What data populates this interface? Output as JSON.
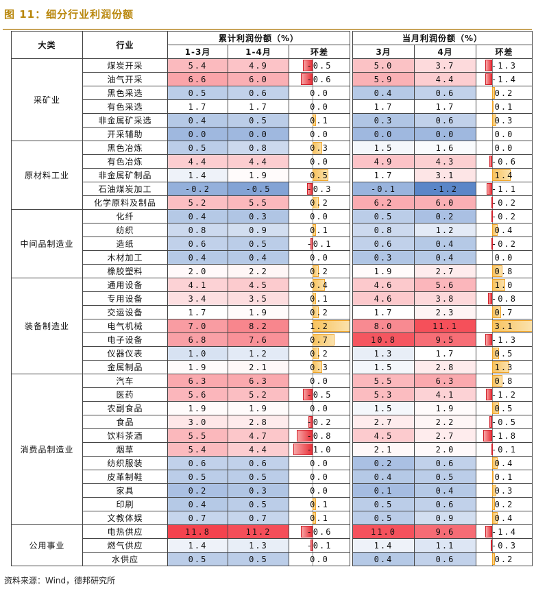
{
  "figure": {
    "title": "图 11：细分行业利润份额",
    "source": "资料来源：Wind，德邦研究所"
  },
  "headers": {
    "category": "大类",
    "industry": "行业",
    "cumulative": "累计利润份额（%）",
    "monthly": "当月利润份额（%）",
    "cum_a": "1-3月",
    "cum_b": "1-4月",
    "cum_chg": "环差",
    "mon_a": "3月",
    "mon_b": "4月",
    "mon_chg": "环差"
  },
  "colors": {
    "high": "#f4434e",
    "mid": "#ffffff",
    "low": "#5b86c8",
    "pos_bar": "#f7c35f",
    "neg_bar": "#e8313a"
  },
  "groups": [
    {
      "name": "采矿业",
      "rows": [
        {
          "industry": "煤炭开采",
          "cum_a": "5.4",
          "cum_b": "4.9",
          "cum_chg": "-0.5",
          "mon_a": "5.0",
          "mon_b": "3.7",
          "mon_chg": "-1.3"
        },
        {
          "industry": "油气开采",
          "cum_a": "6.6",
          "cum_b": "6.0",
          "cum_chg": "-0.6",
          "mon_a": "5.9",
          "mon_b": "4.4",
          "mon_chg": "-1.4"
        },
        {
          "industry": "黑色采选",
          "cum_a": "0.5",
          "cum_b": "0.6",
          "cum_chg": "0.0",
          "mon_a": "0.4",
          "mon_b": "0.6",
          "mon_chg": "0.2"
        },
        {
          "industry": "有色采选",
          "cum_a": "1.7",
          "cum_b": "1.7",
          "cum_chg": "0.0",
          "mon_a": "1.7",
          "mon_b": "1.7",
          "mon_chg": "0.1"
        },
        {
          "industry": "非金属矿采选",
          "cum_a": "0.4",
          "cum_b": "0.5",
          "cum_chg": "0.1",
          "mon_a": "0.3",
          "mon_b": "0.6",
          "mon_chg": "0.3"
        },
        {
          "industry": "开采辅助",
          "cum_a": "0.0",
          "cum_b": "0.0",
          "cum_chg": "0.0",
          "mon_a": "0.0",
          "mon_b": "0.0",
          "mon_chg": "0.0"
        }
      ]
    },
    {
      "name": "原材料工业",
      "rows": [
        {
          "industry": "黑色冶炼",
          "cum_a": "0.5",
          "cum_b": "0.8",
          "cum_chg": "0.3",
          "mon_a": "1.5",
          "mon_b": "1.6",
          "mon_chg": "0.0"
        },
        {
          "industry": "有色冶炼",
          "cum_a": "4.4",
          "cum_b": "4.4",
          "cum_chg": "0.0",
          "mon_a": "4.9",
          "mon_b": "4.3",
          "mon_chg": "-0.6"
        },
        {
          "industry": "非金属矿制品",
          "cum_a": "1.4",
          "cum_b": "1.9",
          "cum_chg": "0.5",
          "mon_a": "1.7",
          "mon_b": "3.1",
          "mon_chg": "1.4"
        },
        {
          "industry": "石油煤炭加工",
          "cum_a": "-0.2",
          "cum_b": "-0.5",
          "cum_chg": "-0.3",
          "mon_a": "-0.1",
          "mon_b": "-1.2",
          "mon_chg": "-1.1"
        },
        {
          "industry": "化学原料及制品",
          "cum_a": "5.2",
          "cum_b": "5.5",
          "cum_chg": "0.2",
          "mon_a": "6.2",
          "mon_b": "6.0",
          "mon_chg": "-0.2"
        }
      ]
    },
    {
      "name": "中间品制造业",
      "rows": [
        {
          "industry": "化纤",
          "cum_a": "0.4",
          "cum_b": "0.3",
          "cum_chg": "0.0",
          "mon_a": "0.5",
          "mon_b": "0.2",
          "mon_chg": "-0.2"
        },
        {
          "industry": "纺织",
          "cum_a": "0.8",
          "cum_b": "0.9",
          "cum_chg": "0.1",
          "mon_a": "0.8",
          "mon_b": "1.2",
          "mon_chg": "0.4"
        },
        {
          "industry": "造纸",
          "cum_a": "0.6",
          "cum_b": "0.5",
          "cum_chg": "-0.1",
          "mon_a": "0.6",
          "mon_b": "0.4",
          "mon_chg": "-0.2"
        },
        {
          "industry": "木材加工",
          "cum_a": "0.4",
          "cum_b": "0.4",
          "cum_chg": "0.0",
          "mon_a": "0.3",
          "mon_b": "0.4",
          "mon_chg": "0.0"
        },
        {
          "industry": "橡胶塑料",
          "cum_a": "2.0",
          "cum_b": "2.2",
          "cum_chg": "0.2",
          "mon_a": "1.9",
          "mon_b": "2.7",
          "mon_chg": "0.8"
        }
      ]
    },
    {
      "name": "装备制造业",
      "rows": [
        {
          "industry": "通用设备",
          "cum_a": "4.1",
          "cum_b": "4.5",
          "cum_chg": "0.4",
          "mon_a": "4.6",
          "mon_b": "5.6",
          "mon_chg": "1.0"
        },
        {
          "industry": "专用设备",
          "cum_a": "3.4",
          "cum_b": "3.5",
          "cum_chg": "0.1",
          "mon_a": "4.6",
          "mon_b": "3.8",
          "mon_chg": "-0.8"
        },
        {
          "industry": "交运设备",
          "cum_a": "1.7",
          "cum_b": "1.9",
          "cum_chg": "0.2",
          "mon_a": "1.7",
          "mon_b": "2.3",
          "mon_chg": "0.7"
        },
        {
          "industry": "电气机械",
          "cum_a": "7.0",
          "cum_b": "8.2",
          "cum_chg": "1.2",
          "mon_a": "8.0",
          "mon_b": "11.1",
          "mon_chg": "3.1"
        },
        {
          "industry": "电子设备",
          "cum_a": "6.8",
          "cum_b": "7.6",
          "cum_chg": "0.7",
          "mon_a": "10.8",
          "mon_b": "9.5",
          "mon_chg": "-1.3"
        },
        {
          "industry": "仪器仪表",
          "cum_a": "1.0",
          "cum_b": "1.2",
          "cum_chg": "0.2",
          "mon_a": "1.3",
          "mon_b": "1.7",
          "mon_chg": "0.5"
        },
        {
          "industry": "金属制品",
          "cum_a": "1.9",
          "cum_b": "2.1",
          "cum_chg": "0.3",
          "mon_a": "1.5",
          "mon_b": "2.8",
          "mon_chg": "1.3"
        }
      ]
    },
    {
      "name": "消费品制造业",
      "rows": [
        {
          "industry": "汽车",
          "cum_a": "6.3",
          "cum_b": "6.3",
          "cum_chg": "0.0",
          "mon_a": "5.5",
          "mon_b": "6.3",
          "mon_chg": "0.8"
        },
        {
          "industry": "医药",
          "cum_a": "5.6",
          "cum_b": "5.2",
          "cum_chg": "-0.5",
          "mon_a": "5.3",
          "mon_b": "4.1",
          "mon_chg": "-1.2"
        },
        {
          "industry": "农副食品",
          "cum_a": "1.9",
          "cum_b": "1.9",
          "cum_chg": "0.0",
          "mon_a": "1.5",
          "mon_b": "1.9",
          "mon_chg": "0.5"
        },
        {
          "industry": "食品",
          "cum_a": "3.0",
          "cum_b": "2.8",
          "cum_chg": "-0.2",
          "mon_a": "2.7",
          "mon_b": "2.2",
          "mon_chg": "-0.5"
        },
        {
          "industry": "饮料茶酒",
          "cum_a": "5.5",
          "cum_b": "4.7",
          "cum_chg": "-0.8",
          "mon_a": "4.5",
          "mon_b": "2.7",
          "mon_chg": "-1.8"
        },
        {
          "industry": "烟草",
          "cum_a": "5.4",
          "cum_b": "4.4",
          "cum_chg": "-1.0",
          "mon_a": "2.1",
          "mon_b": "2.0",
          "mon_chg": "-0.1"
        },
        {
          "industry": "纺织服装",
          "cum_a": "0.6",
          "cum_b": "0.6",
          "cum_chg": "0.0",
          "mon_a": "0.2",
          "mon_b": "0.6",
          "mon_chg": "0.4"
        },
        {
          "industry": "皮革制鞋",
          "cum_a": "0.5",
          "cum_b": "0.5",
          "cum_chg": "0.0",
          "mon_a": "0.4",
          "mon_b": "0.5",
          "mon_chg": "0.1"
        },
        {
          "industry": "家具",
          "cum_a": "0.2",
          "cum_b": "0.3",
          "cum_chg": "0.0",
          "mon_a": "0.1",
          "mon_b": "0.4",
          "mon_chg": "0.3"
        },
        {
          "industry": "印刷",
          "cum_a": "0.4",
          "cum_b": "0.5",
          "cum_chg": "0.1",
          "mon_a": "0.5",
          "mon_b": "0.6",
          "mon_chg": "0.2"
        },
        {
          "industry": "文教体娱",
          "cum_a": "0.7",
          "cum_b": "0.7",
          "cum_chg": "0.1",
          "mon_a": "0.5",
          "mon_b": "0.9",
          "mon_chg": "0.4"
        }
      ]
    },
    {
      "name": "公用事业",
      "rows": [
        {
          "industry": "电热供应",
          "cum_a": "11.8",
          "cum_b": "11.2",
          "cum_chg": "-0.6",
          "mon_a": "11.0",
          "mon_b": "9.6",
          "mon_chg": "-1.4"
        },
        {
          "industry": "燃气供应",
          "cum_a": "1.4",
          "cum_b": "1.3",
          "cum_chg": "-0.1",
          "mon_a": "1.4",
          "mon_b": "1.1",
          "mon_chg": "-0.3"
        },
        {
          "industry": "水供应",
          "cum_a": "0.5",
          "cum_b": "0.5",
          "cum_chg": "0.0",
          "mon_a": "0.4",
          "mon_b": "0.6",
          "mon_chg": "0.2"
        }
      ]
    }
  ]
}
